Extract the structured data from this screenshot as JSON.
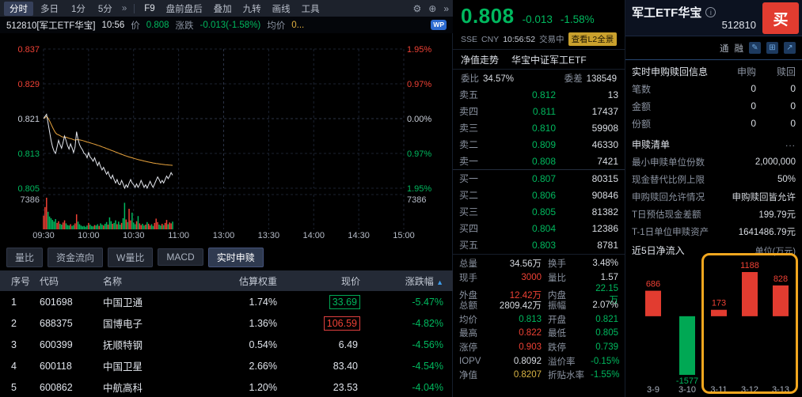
{
  "colors": {
    "up": "#ef4135",
    "down": "#00b85e",
    "avg_line": "#e8a33d",
    "highlight_box": "#f2a71f",
    "buy_button": "#e23c30"
  },
  "toolbar": {
    "period_tabs": [
      {
        "label": "分时",
        "active": true
      },
      {
        "label": "多日",
        "active": false
      },
      {
        "label": "1分",
        "active": false
      },
      {
        "label": "5分",
        "active": false
      }
    ],
    "period_more": "»",
    "f9": "F9",
    "buttons": [
      "盘前盘后",
      "叠加",
      "九转",
      "画线",
      "工具"
    ],
    "gear_icon": "⚙",
    "add_icon": "⊕",
    "more_icon": "»"
  },
  "info_bar": {
    "code_name": "512810[军工ETF华宝]",
    "time": "10:56",
    "price_label": "价",
    "price": "0.808",
    "change_label": "涨跌",
    "change": "-0.013(-1.58%)",
    "avg_label": "均价",
    "avg_value": "0...",
    "wp_badge": "WP"
  },
  "chart_axis": {
    "y_left": [
      "0.837",
      "0.829",
      "0.821",
      "0.813",
      "0.805"
    ],
    "y_right": [
      "1.95%",
      "0.97%",
      "0.00%",
      "0.97%",
      "1.95%"
    ],
    "vol_label_left": "7386",
    "vol_label_right": "7386",
    "x_labels": [
      "09:30",
      "10:00",
      "10:30",
      "11:00",
      "13:00",
      "13:30",
      "14:00",
      "14:30",
      "15:00"
    ]
  },
  "sub_tabs": [
    {
      "label": "量比",
      "active": false
    },
    {
      "label": "资金流向",
      "active": false
    },
    {
      "label": "W量比",
      "active": false
    },
    {
      "label": "MACD",
      "active": false
    },
    {
      "label": "实时申赎",
      "active": true
    }
  ],
  "holdings": {
    "headers": [
      "序号",
      "代码",
      "名称",
      "估算权重",
      "现价",
      "涨跌幅"
    ],
    "sort_icon": "▲",
    "rows": [
      {
        "no": "1",
        "code": "601698",
        "name": "中国卫通",
        "weight": "1.74%",
        "price": "33.69",
        "change": "-5.47%"
      },
      {
        "no": "2",
        "code": "688375",
        "name": "国博电子",
        "weight": "1.36%",
        "price": "106.59",
        "change": "-4.82%"
      },
      {
        "no": "3",
        "code": "600399",
        "name": "抚顺特钢",
        "weight": "0.54%",
        "price": "6.49",
        "change": "-4.56%"
      },
      {
        "no": "4",
        "code": "600118",
        "name": "中国卫星",
        "weight": "2.66%",
        "price": "83.40",
        "change": "-4.54%"
      },
      {
        "no": "5",
        "code": "600862",
        "name": "中航高科",
        "weight": "1.20%",
        "price": "23.53",
        "change": "-4.04%"
      }
    ]
  },
  "quote_panel": {
    "price": "0.808",
    "change": "-0.013",
    "pct": "-1.58%",
    "exchange": "SSE",
    "currency": "CNY",
    "time": "10:56:52",
    "status": "交易中",
    "l2_link": "查看L2全景",
    "nav_link": "净值走势",
    "fund_name": "华宝中证军工ETF",
    "weibi_label": "委比",
    "weibi": "34.57%",
    "weicha_label": "委差",
    "weicha": "138549",
    "asks": [
      {
        "label": "卖五",
        "price": "0.812",
        "vol": "13"
      },
      {
        "label": "卖四",
        "price": "0.811",
        "vol": "17437"
      },
      {
        "label": "卖三",
        "price": "0.810",
        "vol": "59908"
      },
      {
        "label": "卖二",
        "price": "0.809",
        "vol": "46330"
      },
      {
        "label": "卖一",
        "price": "0.808",
        "vol": "7421"
      }
    ],
    "bids": [
      {
        "label": "买一",
        "price": "0.807",
        "vol": "80315"
      },
      {
        "label": "买二",
        "price": "0.806",
        "vol": "90846"
      },
      {
        "label": "买三",
        "price": "0.805",
        "vol": "81382"
      },
      {
        "label": "买四",
        "price": "0.804",
        "vol": "12386"
      },
      {
        "label": "买五",
        "price": "0.803",
        "vol": "8781"
      }
    ],
    "stats": [
      {
        "label": "总量",
        "value": "34.56万"
      },
      {
        "label": "换手",
        "value": "3.48%"
      },
      {
        "label": "现手",
        "value": "3000"
      },
      {
        "label": "量比",
        "value": "1.57"
      },
      {
        "label": "外盘",
        "value": "12.42万"
      },
      {
        "label": "内盘",
        "value": "22.15万"
      },
      {
        "label": "总额",
        "value": "2809.42万"
      },
      {
        "label": "振幅",
        "value": "2.07%"
      },
      {
        "label": "均价",
        "value": "0.813"
      },
      {
        "label": "开盘",
        "value": "0.821"
      },
      {
        "label": "最高",
        "value": "0.822"
      },
      {
        "label": "最低",
        "value": "0.805"
      },
      {
        "label": "涨停",
        "value": "0.903"
      },
      {
        "label": "跌停",
        "value": "0.739"
      },
      {
        "label": "IOPV",
        "value": "0.8092"
      },
      {
        "label": "溢价率",
        "value": "-0.15%"
      },
      {
        "label": "净值",
        "value": "0.8207"
      },
      {
        "label": "折贴水率",
        "value": "-1.55%"
      }
    ]
  },
  "right_panel": {
    "title": "军工ETF华宝",
    "info_icon": "i",
    "code": "512810",
    "buy_label": "买",
    "margin_tags": [
      "通",
      "融"
    ],
    "icons": [
      "✎",
      "⊞",
      "↗"
    ],
    "subscription": {
      "title": "实时申购赎回信息",
      "col_subscribe": "申购",
      "col_redeem": "赎回",
      "rows": [
        {
          "label": "笔数",
          "subscribe": "0",
          "redeem": "0"
        },
        {
          "label": "金额",
          "subscribe": "0",
          "redeem": "0"
        },
        {
          "label": "份额",
          "subscribe": "0",
          "redeem": "0"
        }
      ]
    },
    "detail": {
      "title": "申赎清单",
      "more": "...",
      "rows": [
        {
          "label": "最小申赎单位份数",
          "value": "2,000,000"
        },
        {
          "label": "现金替代比例上限",
          "value": "50%"
        },
        {
          "label": "申购赎回允许情况",
          "value": "申购赎回皆允许"
        },
        {
          "label": "T日预估现金差额",
          "value": "199.79元"
        },
        {
          "label": "T-1日单位申赎资产",
          "value": "1641486.79元"
        }
      ]
    },
    "flow": {
      "title": "近5日净流入",
      "unit": "单位(万元)"
    }
  },
  "chart_data": [
    {
      "type": "line",
      "title": "512810 军工ETF华宝 分时",
      "prev_close": 0.821,
      "ylim": [
        0.805,
        0.837
      ],
      "vol_max": 7386,
      "session_minutes": 240,
      "x_labels": [
        "09:30",
        "10:00",
        "10:30",
        "11:00",
        "13:00",
        "13:30",
        "14:00",
        "14:30",
        "15:00"
      ],
      "series": [
        {
          "name": "价格",
          "values": [
            0.821,
            0.8215,
            0.822,
            0.82,
            0.818,
            0.816,
            0.8145,
            0.8135,
            0.813,
            0.8145,
            0.816,
            0.815,
            0.8142,
            0.8155,
            0.817,
            0.816,
            0.8148,
            0.814,
            0.8152,
            0.8143,
            0.8132,
            0.8145,
            0.818,
            0.8162,
            0.815,
            0.8143,
            0.8138,
            0.813,
            0.8128,
            0.812,
            0.8132,
            0.8122,
            0.8118,
            0.8112,
            0.812,
            0.811,
            0.8102,
            0.811,
            0.81,
            0.8092,
            0.8098,
            0.809,
            0.8082,
            0.8088,
            0.8078,
            0.8072,
            0.808,
            0.807,
            0.8062,
            0.807,
            0.806,
            0.8058,
            0.8068,
            0.806,
            0.805,
            0.8058,
            0.8052,
            0.8062,
            0.807,
            0.8062,
            0.8058,
            0.8052,
            0.806,
            0.8052,
            0.8058,
            0.8068,
            0.806,
            0.8052,
            0.8058,
            0.805,
            0.8058,
            0.8066,
            0.8058,
            0.8052,
            0.806,
            0.8068,
            0.8076,
            0.807,
            0.8062,
            0.8068,
            0.8062,
            0.807,
            0.8078,
            0.8072,
            0.8078,
            0.8086,
            0.808
          ]
        },
        {
          "name": "均价",
          "derived": "cumulative_mean"
        }
      ],
      "volumes": [
        3200,
        5200,
        7386,
        4100,
        3000,
        2600,
        2200,
        1800,
        2400,
        1500,
        1900,
        1300,
        1100,
        1600,
        2100,
        1400,
        1000,
        900,
        1200,
        800,
        1000,
        1400,
        3500,
        1800,
        1200,
        900,
        700,
        800,
        600,
        900,
        1500,
        1100,
        800,
        700,
        1000,
        900,
        1200,
        800,
        1400,
        1100,
        900,
        1300,
        1700,
        1100,
        2800,
        1900,
        1300,
        1500,
        2100,
        1200,
        1800,
        1100,
        1500,
        2600,
        6200,
        2300,
        1700,
        4800,
        2100,
        3900,
        1600,
        1200,
        1900,
        3100,
        1400,
        1000,
        1300,
        900,
        1100,
        1700,
        1300,
        900,
        1200,
        800,
        1500,
        2500,
        1700,
        1100,
        900,
        1300,
        1000,
        1500,
        2200,
        1200,
        1600,
        1400,
        1800
      ]
    },
    {
      "type": "bar",
      "title": "近5日净流入",
      "ylabel": "万元",
      "categories": [
        "3-9",
        "3-10",
        "3-11",
        "3-12",
        "3-13"
      ],
      "values": [
        686,
        -1577,
        173,
        1188,
        828
      ],
      "highlight_categories": [
        "3-11",
        "3-12",
        "3-13"
      ]
    }
  ]
}
